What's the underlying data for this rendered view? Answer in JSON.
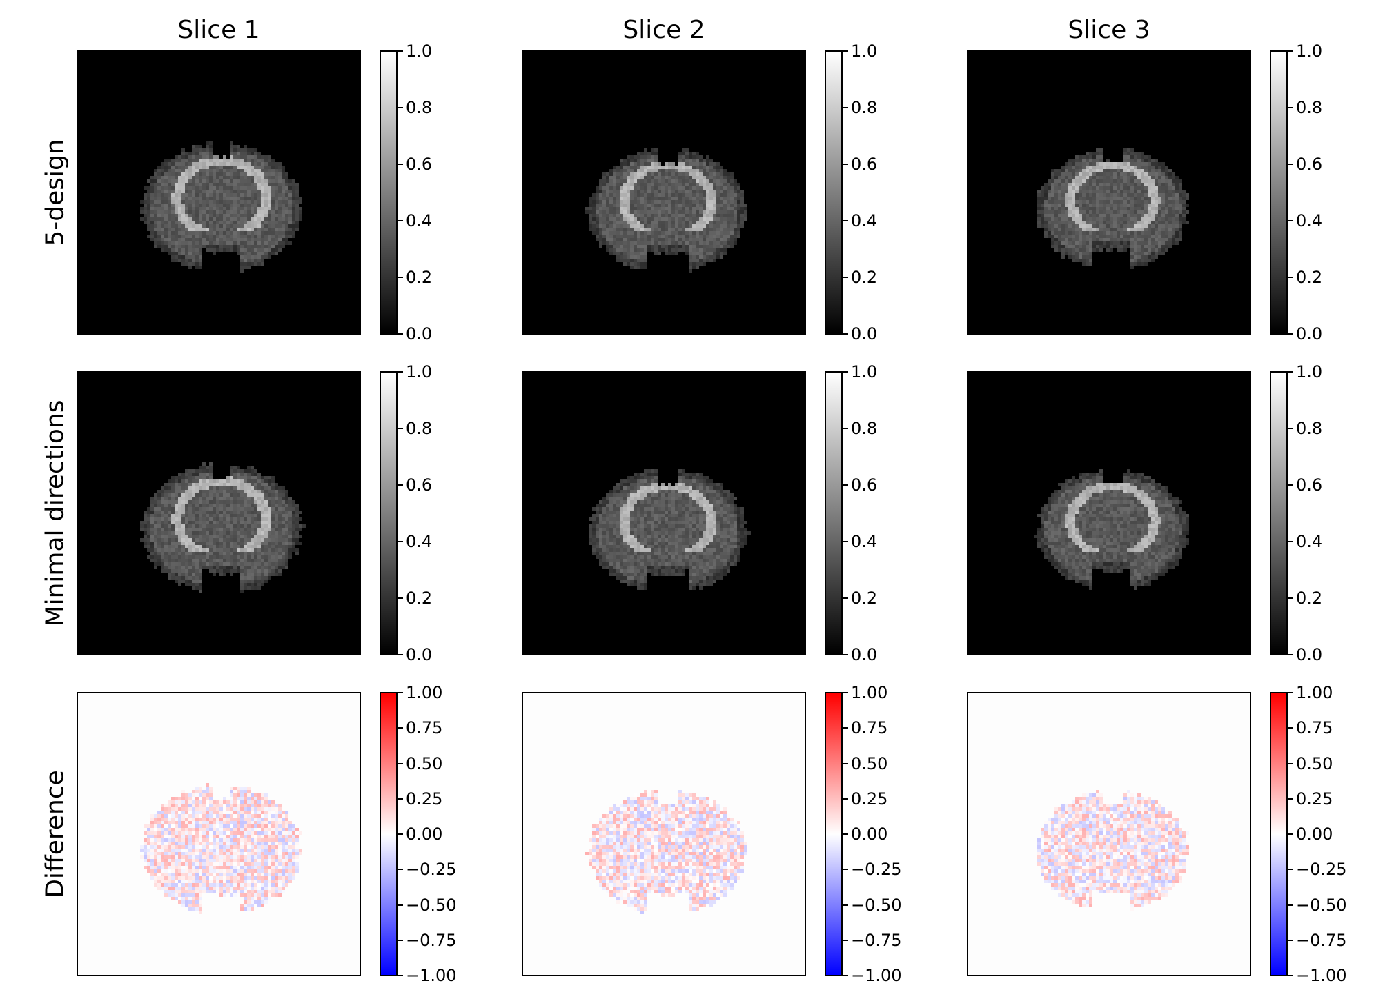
{
  "columns": [
    "Slice 1",
    "Slice 2",
    "Slice 3"
  ],
  "rows": [
    "5-design",
    "Minimal directions",
    "Difference"
  ],
  "colorbars": {
    "gray": {
      "colormap": "gray",
      "ticks": [
        "1.0",
        "0.8",
        "0.6",
        "0.4",
        "0.2",
        "0.0"
      ]
    },
    "diverging": {
      "colormap": "bwr",
      "ticks": [
        "1.00",
        "0.75",
        "0.50",
        "0.25",
        "0.00",
        "−0.25",
        "−0.50",
        "−0.75",
        "−1.00"
      ]
    }
  }
}
